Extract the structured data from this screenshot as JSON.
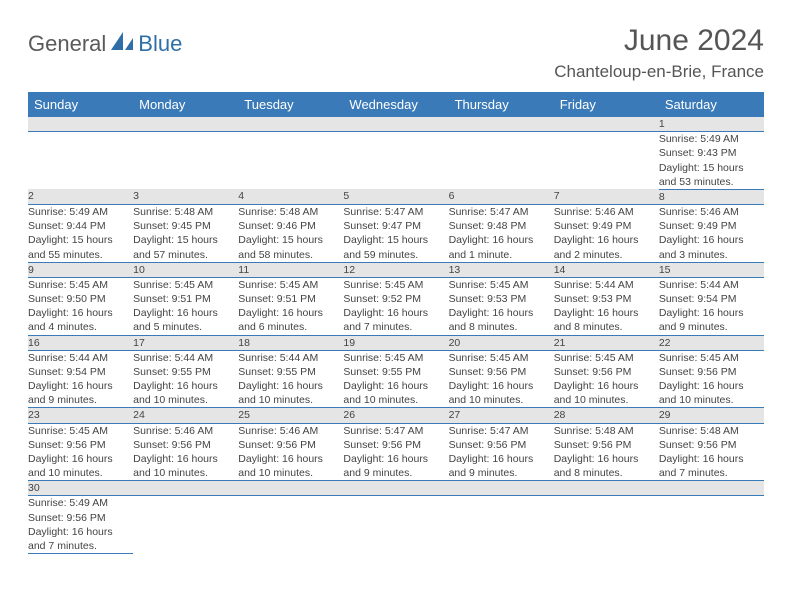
{
  "logo": {
    "part1": "General",
    "part2": "Blue"
  },
  "title": "June 2024",
  "location": "Chanteloup-en-Brie, France",
  "colors": {
    "header_bg": "#3a7ab8",
    "header_fg": "#ffffff",
    "daynum_bg": "#e5e5e5",
    "row_border": "#3a7ab8",
    "logo_gray": "#5a5a5a",
    "logo_blue": "#2f6fa8",
    "text": "#444444",
    "title_color": "#555555"
  },
  "weekdays": [
    "Sunday",
    "Monday",
    "Tuesday",
    "Wednesday",
    "Thursday",
    "Friday",
    "Saturday"
  ],
  "weeks": [
    [
      null,
      null,
      null,
      null,
      null,
      null,
      {
        "n": "1",
        "sr": "Sunrise: 5:49 AM",
        "ss": "Sunset: 9:43 PM",
        "d1": "Daylight: 15 hours",
        "d2": "and 53 minutes."
      }
    ],
    [
      {
        "n": "2",
        "sr": "Sunrise: 5:49 AM",
        "ss": "Sunset: 9:44 PM",
        "d1": "Daylight: 15 hours",
        "d2": "and 55 minutes."
      },
      {
        "n": "3",
        "sr": "Sunrise: 5:48 AM",
        "ss": "Sunset: 9:45 PM",
        "d1": "Daylight: 15 hours",
        "d2": "and 57 minutes."
      },
      {
        "n": "4",
        "sr": "Sunrise: 5:48 AM",
        "ss": "Sunset: 9:46 PM",
        "d1": "Daylight: 15 hours",
        "d2": "and 58 minutes."
      },
      {
        "n": "5",
        "sr": "Sunrise: 5:47 AM",
        "ss": "Sunset: 9:47 PM",
        "d1": "Daylight: 15 hours",
        "d2": "and 59 minutes."
      },
      {
        "n": "6",
        "sr": "Sunrise: 5:47 AM",
        "ss": "Sunset: 9:48 PM",
        "d1": "Daylight: 16 hours",
        "d2": "and 1 minute."
      },
      {
        "n": "7",
        "sr": "Sunrise: 5:46 AM",
        "ss": "Sunset: 9:49 PM",
        "d1": "Daylight: 16 hours",
        "d2": "and 2 minutes."
      },
      {
        "n": "8",
        "sr": "Sunrise: 5:46 AM",
        "ss": "Sunset: 9:49 PM",
        "d1": "Daylight: 16 hours",
        "d2": "and 3 minutes."
      }
    ],
    [
      {
        "n": "9",
        "sr": "Sunrise: 5:45 AM",
        "ss": "Sunset: 9:50 PM",
        "d1": "Daylight: 16 hours",
        "d2": "and 4 minutes."
      },
      {
        "n": "10",
        "sr": "Sunrise: 5:45 AM",
        "ss": "Sunset: 9:51 PM",
        "d1": "Daylight: 16 hours",
        "d2": "and 5 minutes."
      },
      {
        "n": "11",
        "sr": "Sunrise: 5:45 AM",
        "ss": "Sunset: 9:51 PM",
        "d1": "Daylight: 16 hours",
        "d2": "and 6 minutes."
      },
      {
        "n": "12",
        "sr": "Sunrise: 5:45 AM",
        "ss": "Sunset: 9:52 PM",
        "d1": "Daylight: 16 hours",
        "d2": "and 7 minutes."
      },
      {
        "n": "13",
        "sr": "Sunrise: 5:45 AM",
        "ss": "Sunset: 9:53 PM",
        "d1": "Daylight: 16 hours",
        "d2": "and 8 minutes."
      },
      {
        "n": "14",
        "sr": "Sunrise: 5:44 AM",
        "ss": "Sunset: 9:53 PM",
        "d1": "Daylight: 16 hours",
        "d2": "and 8 minutes."
      },
      {
        "n": "15",
        "sr": "Sunrise: 5:44 AM",
        "ss": "Sunset: 9:54 PM",
        "d1": "Daylight: 16 hours",
        "d2": "and 9 minutes."
      }
    ],
    [
      {
        "n": "16",
        "sr": "Sunrise: 5:44 AM",
        "ss": "Sunset: 9:54 PM",
        "d1": "Daylight: 16 hours",
        "d2": "and 9 minutes."
      },
      {
        "n": "17",
        "sr": "Sunrise: 5:44 AM",
        "ss": "Sunset: 9:55 PM",
        "d1": "Daylight: 16 hours",
        "d2": "and 10 minutes."
      },
      {
        "n": "18",
        "sr": "Sunrise: 5:44 AM",
        "ss": "Sunset: 9:55 PM",
        "d1": "Daylight: 16 hours",
        "d2": "and 10 minutes."
      },
      {
        "n": "19",
        "sr": "Sunrise: 5:45 AM",
        "ss": "Sunset: 9:55 PM",
        "d1": "Daylight: 16 hours",
        "d2": "and 10 minutes."
      },
      {
        "n": "20",
        "sr": "Sunrise: 5:45 AM",
        "ss": "Sunset: 9:56 PM",
        "d1": "Daylight: 16 hours",
        "d2": "and 10 minutes."
      },
      {
        "n": "21",
        "sr": "Sunrise: 5:45 AM",
        "ss": "Sunset: 9:56 PM",
        "d1": "Daylight: 16 hours",
        "d2": "and 10 minutes."
      },
      {
        "n": "22",
        "sr": "Sunrise: 5:45 AM",
        "ss": "Sunset: 9:56 PM",
        "d1": "Daylight: 16 hours",
        "d2": "and 10 minutes."
      }
    ],
    [
      {
        "n": "23",
        "sr": "Sunrise: 5:45 AM",
        "ss": "Sunset: 9:56 PM",
        "d1": "Daylight: 16 hours",
        "d2": "and 10 minutes."
      },
      {
        "n": "24",
        "sr": "Sunrise: 5:46 AM",
        "ss": "Sunset: 9:56 PM",
        "d1": "Daylight: 16 hours",
        "d2": "and 10 minutes."
      },
      {
        "n": "25",
        "sr": "Sunrise: 5:46 AM",
        "ss": "Sunset: 9:56 PM",
        "d1": "Daylight: 16 hours",
        "d2": "and 10 minutes."
      },
      {
        "n": "26",
        "sr": "Sunrise: 5:47 AM",
        "ss": "Sunset: 9:56 PM",
        "d1": "Daylight: 16 hours",
        "d2": "and 9 minutes."
      },
      {
        "n": "27",
        "sr": "Sunrise: 5:47 AM",
        "ss": "Sunset: 9:56 PM",
        "d1": "Daylight: 16 hours",
        "d2": "and 9 minutes."
      },
      {
        "n": "28",
        "sr": "Sunrise: 5:48 AM",
        "ss": "Sunset: 9:56 PM",
        "d1": "Daylight: 16 hours",
        "d2": "and 8 minutes."
      },
      {
        "n": "29",
        "sr": "Sunrise: 5:48 AM",
        "ss": "Sunset: 9:56 PM",
        "d1": "Daylight: 16 hours",
        "d2": "and 7 minutes."
      }
    ],
    [
      {
        "n": "30",
        "sr": "Sunrise: 5:49 AM",
        "ss": "Sunset: 9:56 PM",
        "d1": "Daylight: 16 hours",
        "d2": "and 7 minutes."
      },
      null,
      null,
      null,
      null,
      null,
      null
    ]
  ]
}
